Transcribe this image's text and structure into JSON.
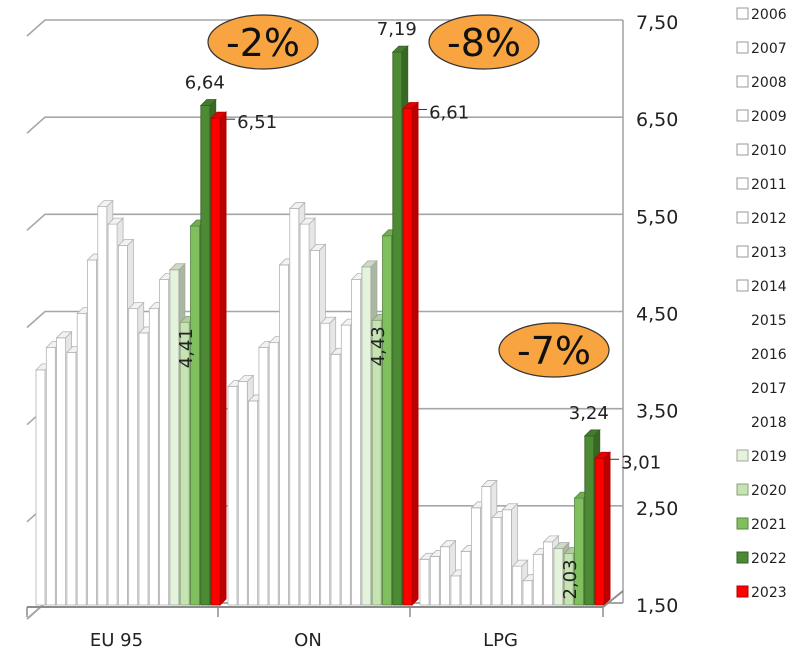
{
  "chart_data": {
    "type": "bar",
    "style": "3d-clustered-column",
    "categories": [
      "EU 95",
      "ON",
      "LPG"
    ],
    "series": [
      {
        "name": "2006",
        "color": "#ffffff",
        "values": [
          3.92,
          3.75,
          1.97
        ]
      },
      {
        "name": "2007",
        "color": "#ffffff",
        "values": [
          4.15,
          3.8,
          2.0
        ]
      },
      {
        "name": "2008",
        "color": "#ffffff",
        "values": [
          4.25,
          3.6,
          2.1
        ]
      },
      {
        "name": "2009",
        "color": "#ffffff",
        "values": [
          4.1,
          4.15,
          1.8
        ]
      },
      {
        "name": "2010",
        "color": "#ffffff",
        "values": [
          4.5,
          4.2,
          2.05
        ]
      },
      {
        "name": "2011",
        "color": "#ffffff",
        "values": [
          5.05,
          5.0,
          2.5
        ]
      },
      {
        "name": "2012",
        "color": "#ffffff",
        "values": [
          5.6,
          5.58,
          2.72
        ]
      },
      {
        "name": "2013",
        "color": "#ffffff",
        "values": [
          5.42,
          5.42,
          2.4
        ]
      },
      {
        "name": "2014",
        "color": "#ffffff",
        "values": [
          5.2,
          5.15,
          2.48
        ]
      },
      {
        "name": "2015",
        "color": "#ffffff",
        "values": [
          4.55,
          4.4,
          1.9
        ]
      },
      {
        "name": "2016",
        "color": "#ffffff",
        "values": [
          4.3,
          4.08,
          1.75
        ]
      },
      {
        "name": "2017",
        "color": "#ffffff",
        "values": [
          4.55,
          4.38,
          2.02
        ]
      },
      {
        "name": "2018",
        "color": "#ffffff",
        "values": [
          4.85,
          4.85,
          2.15
        ]
      },
      {
        "name": "2019",
        "color": "#e5f2dc",
        "values": [
          4.95,
          4.98,
          2.08
        ]
      },
      {
        "name": "2020",
        "color": "#c5e3b3",
        "values": [
          4.41,
          4.43,
          2.03
        ]
      },
      {
        "name": "2021",
        "color": "#7fbf5e",
        "values": [
          5.4,
          5.3,
          2.6
        ]
      },
      {
        "name": "2022",
        "color": "#4c8a33",
        "values": [
          6.64,
          7.19,
          3.24
        ]
      },
      {
        "name": "2023",
        "color": "#ff0000",
        "values": [
          6.51,
          6.61,
          3.01
        ]
      }
    ],
    "yticks": [
      "1,50",
      "2,50",
      "3,50",
      "4,50",
      "5,50",
      "6,50",
      "7,50"
    ],
    "ylim": [
      1.5,
      7.5
    ],
    "grid": true,
    "legend_position": "right",
    "data_labels": [
      {
        "text": "6,64",
        "category": 0,
        "series": "2022"
      },
      {
        "text": "6,51",
        "category": 0,
        "series": "2023"
      },
      {
        "text": "4,41",
        "category": 0,
        "series": "2020",
        "rotated": true
      },
      {
        "text": "7,19",
        "category": 1,
        "series": "2022"
      },
      {
        "text": "6,61",
        "category": 1,
        "series": "2023"
      },
      {
        "text": "4,43",
        "category": 1,
        "series": "2020",
        "rotated": true
      },
      {
        "text": "3,24",
        "category": 2,
        "series": "2022"
      },
      {
        "text": "3,01",
        "category": 2,
        "series": "2023"
      },
      {
        "text": "2,03",
        "category": 2,
        "series": "2020",
        "rotated": true
      }
    ],
    "annotations": [
      {
        "text": "-2%",
        "category": 0,
        "color": "#f7a441"
      },
      {
        "text": "-8%",
        "category": 1,
        "color": "#f7a441"
      },
      {
        "text": "-7%",
        "category": 2,
        "color": "#f7a441"
      }
    ]
  }
}
